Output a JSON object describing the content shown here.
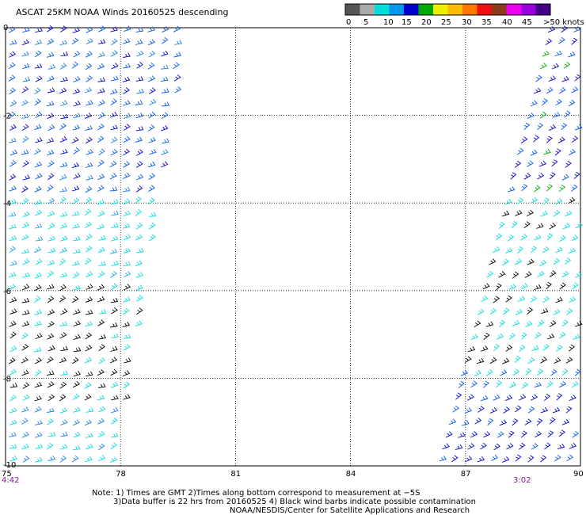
{
  "title": "ASCAT 25KM NOAA Winds 20160525 descending",
  "legend": {
    "colors": [
      "#555555",
      "#aaaaaa",
      "#00dddd",
      "#0099ee",
      "#0000cc",
      "#00aa00",
      "#eeee00",
      "#ffbb00",
      "#ff7700",
      "#ee1111",
      "#8b3a1a",
      "#ee00ee",
      "#9900dd",
      "#440088"
    ],
    "labels": [
      "0",
      "5",
      "10",
      "15",
      "20",
      "25",
      "30",
      "35",
      "40",
      "45",
      ">50 knots"
    ]
  },
  "notes": {
    "line1": "Note: 1) Times are GMT 2)Times along bottom correspond to measurement at −5S",
    "line2": "3)Data buffer is 22 hrs from 20160525 4) Black wind barbs indicate possible contamination",
    "line3": "NOAA/NESDIS/Center for Satellite Applications and Research"
  },
  "times": {
    "left": "4:42",
    "right": "3:02"
  },
  "chart_data": {
    "type": "scatter",
    "title": "ASCAT 25KM NOAA Winds 20160525 descending",
    "x_ticks": [
      "75",
      "78",
      "81",
      "84",
      "87",
      "90"
    ],
    "y_ticks": [
      "0",
      "-2",
      "-4",
      "-6",
      "-8",
      "-10"
    ],
    "xlim": [
      75,
      90
    ],
    "ylim": [
      -10,
      0
    ],
    "grid": true,
    "swaths": [
      {
        "name": "west",
        "time": "4:42",
        "lon_range": [
          75,
          79.7
        ]
      },
      {
        "name": "east",
        "time": "3:02",
        "lon_range": [
          86.7,
          90
        ]
      }
    ],
    "wind_speed_units": "knots"
  }
}
